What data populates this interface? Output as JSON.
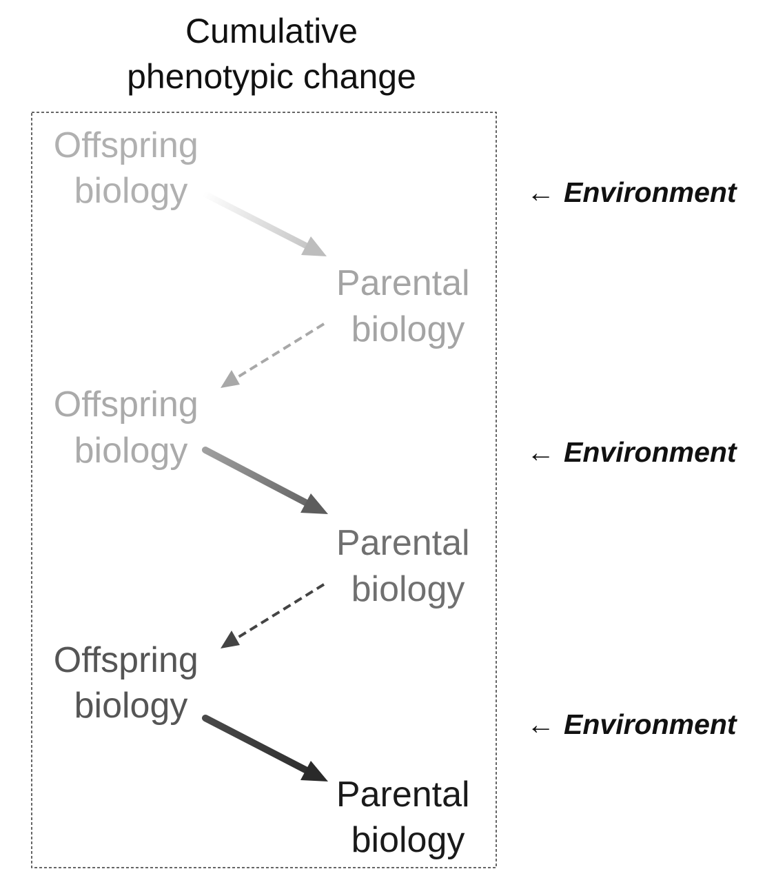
{
  "title": {
    "line1": "Cumulative",
    "line2": "phenotypic change"
  },
  "generations": [
    {
      "offspring": {
        "line1": "Offspring",
        "line2": "biology"
      },
      "parental": {
        "line1": "Parental",
        "line2": "biology"
      },
      "environment": {
        "arrow": "←",
        "label": "Environment"
      }
    },
    {
      "offspring": {
        "line1": "Offspring",
        "line2": "biology"
      },
      "parental": {
        "line1": "Parental",
        "line2": "biology"
      },
      "environment": {
        "arrow": "←",
        "label": "Environment"
      }
    },
    {
      "offspring": {
        "line1": "Offspring",
        "line2": "biology"
      },
      "parental": {
        "line1": "Parental",
        "line2": "biology"
      },
      "environment": {
        "arrow": "←",
        "label": "Environment"
      }
    }
  ],
  "colors": {
    "generation_1_offspring": "#b0b0b0",
    "generation_1_parental": "#a4a4a4",
    "generation_2_offspring": "#aaaaaa",
    "generation_2_parental": "#707070",
    "generation_3_offspring": "#555555",
    "generation_3_parental": "#1a1a1a",
    "arrow_1_solid": "#c2c2c2",
    "arrow_1_dashed": "#a8a8a8",
    "arrow_2_solid": "#6f6f6f",
    "arrow_2_dashed": "#444444",
    "arrow_3_solid": "#2f2f2f",
    "box_border": "#333333",
    "environment_text": "#111111"
  }
}
